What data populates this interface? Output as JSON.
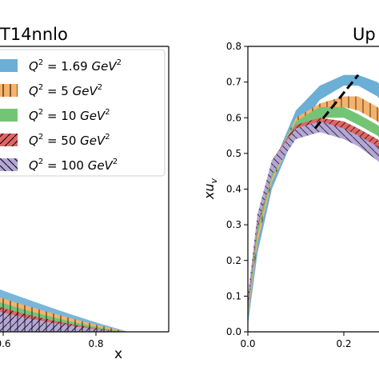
{
  "chart_data": [
    {
      "type": "area",
      "title": "T14nnlo",
      "xlabel": "x",
      "ylabel": "",
      "x_ticks": [
        "0.6",
        "0.8"
      ],
      "legend_position": "upper-right",
      "legend": {
        "entries": [
          {
            "q2": "1.69",
            "color": "#6baed6",
            "hatch": "none"
          },
          {
            "q2": "5",
            "color": "#f6b26b",
            "hatch": "vertical"
          },
          {
            "q2": "10",
            "color": "#74c476",
            "hatch": "none"
          },
          {
            "q2": "50",
            "color": "#e06666",
            "hatch": "diagonal"
          },
          {
            "q2": "100",
            "color": "#b4a7d6",
            "hatch": "cross"
          }
        ],
        "prefix": "Q",
        "sup": "2",
        "eq": " = ",
        "unit": "GeV"
      }
    },
    {
      "type": "area",
      "title": "Up",
      "xlabel": "",
      "ylabel_main": "xu",
      "ylabel_sub": "v",
      "x_ticks": [
        "0.0",
        "0.2"
      ],
      "y_ticks": [
        "0.0",
        "0.1",
        "0.2",
        "0.3",
        "0.4",
        "0.5",
        "0.6",
        "0.7",
        "0.8"
      ],
      "ylim": [
        0,
        0.8
      ],
      "xlim": [
        0,
        0.35
      ],
      "series": [
        {
          "color": "#6baed6",
          "x": [
            0.0,
            0.02,
            0.05,
            0.1,
            0.15,
            0.2,
            0.23,
            0.27,
            0.3,
            0.33
          ],
          "lower": [
            0.02,
            0.22,
            0.4,
            0.56,
            0.65,
            0.69,
            0.69,
            0.66,
            0.61,
            0.55
          ],
          "upper": [
            0.04,
            0.28,
            0.46,
            0.62,
            0.69,
            0.72,
            0.72,
            0.7,
            0.66,
            0.61
          ]
        },
        {
          "color": "#f6b26b",
          "x": [
            0.0,
            0.02,
            0.05,
            0.1,
            0.15,
            0.2,
            0.23,
            0.27,
            0.3,
            0.33
          ],
          "lower": [
            0.04,
            0.25,
            0.42,
            0.56,
            0.61,
            0.63,
            0.62,
            0.59,
            0.55,
            0.5
          ],
          "upper": [
            0.06,
            0.29,
            0.46,
            0.6,
            0.64,
            0.66,
            0.66,
            0.63,
            0.59,
            0.55
          ]
        },
        {
          "color": "#74c476",
          "x": [
            0.0,
            0.02,
            0.05,
            0.1,
            0.15,
            0.2,
            0.23,
            0.27,
            0.3,
            0.33
          ],
          "lower": [
            0.05,
            0.27,
            0.43,
            0.56,
            0.6,
            0.6,
            0.58,
            0.55,
            0.51,
            0.46
          ],
          "upper": [
            0.07,
            0.3,
            0.47,
            0.59,
            0.63,
            0.63,
            0.61,
            0.58,
            0.55,
            0.5
          ]
        },
        {
          "color": "#e06666",
          "x": [
            0.0,
            0.02,
            0.05,
            0.1,
            0.15,
            0.2,
            0.23,
            0.27,
            0.3,
            0.33
          ],
          "lower": [
            0.06,
            0.29,
            0.44,
            0.55,
            0.57,
            0.56,
            0.54,
            0.5,
            0.46,
            0.42
          ],
          "upper": [
            0.09,
            0.32,
            0.48,
            0.58,
            0.6,
            0.59,
            0.57,
            0.54,
            0.5,
            0.46
          ]
        },
        {
          "color": "#b4a7d6",
          "x": [
            0.0,
            0.02,
            0.05,
            0.1,
            0.15,
            0.2,
            0.23,
            0.27,
            0.3,
            0.33
          ],
          "lower": [
            0.07,
            0.3,
            0.44,
            0.54,
            0.56,
            0.54,
            0.52,
            0.48,
            0.44,
            0.4
          ],
          "upper": [
            0.1,
            0.33,
            0.48,
            0.57,
            0.59,
            0.57,
            0.55,
            0.52,
            0.48,
            0.44
          ]
        }
      ],
      "dashed_line": {
        "x": [
          0.14,
          0.23
        ],
        "y": [
          0.57,
          0.72
        ]
      }
    }
  ]
}
